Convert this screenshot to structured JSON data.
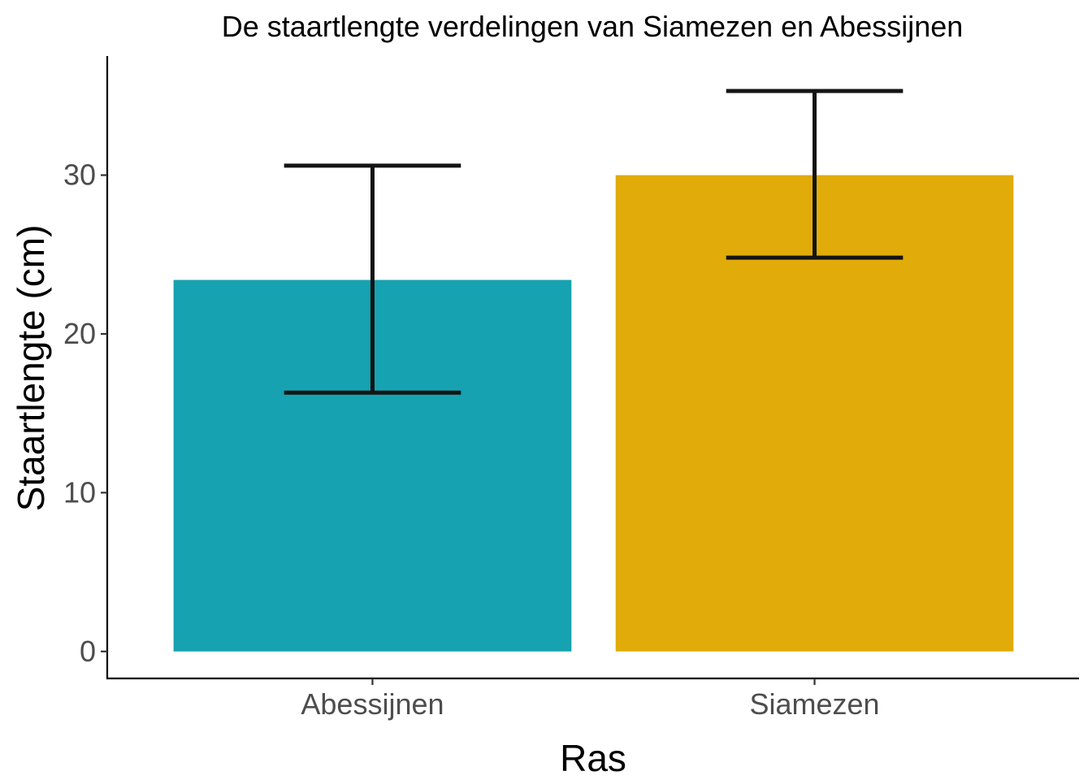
{
  "chart_data": {
    "type": "bar",
    "title": "De staartlengte verdelingen van Siamezen en Abessijnen",
    "xlabel": "Ras",
    "ylabel": "Staartlengte (cm)",
    "categories": [
      "Abessijnen",
      "Siamezen"
    ],
    "values": [
      23.4,
      30.0
    ],
    "error_low": [
      16.3,
      24.8
    ],
    "error_high": [
      30.6,
      35.3
    ],
    "ylim": [
      -1.7,
      37.5
    ],
    "yticks": [
      0,
      10,
      20,
      30
    ],
    "colors": [
      "#16A2B0",
      "#E1AB0A"
    ],
    "grid": false,
    "legend": "none"
  }
}
